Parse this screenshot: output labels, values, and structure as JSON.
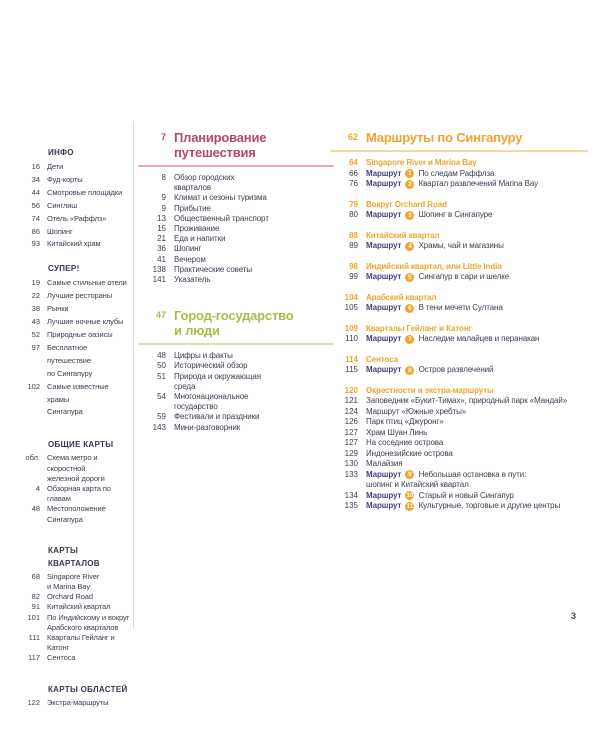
{
  "page_number": "3",
  "colors": {
    "planning_accent": "#b5486e",
    "city_accent": "#a8bd4a",
    "routes_accent": "#efa42d",
    "body_text": "#3e3c52",
    "route_word_color": "#4a3e7e",
    "badge_bg": "#f0a42c"
  },
  "sidebar": {
    "sections": [
      {
        "title": "ИНФО",
        "tight": false,
        "items": [
          {
            "page": "16",
            "label": "Дети"
          },
          {
            "page": "34",
            "label": "Фуд-корты"
          },
          {
            "page": "44",
            "label": "Смотровые площадки"
          },
          {
            "page": "56",
            "label": "Синглиш"
          },
          {
            "page": "74",
            "label": "Отель «Раффлз»"
          },
          {
            "page": "86",
            "label": "Шопинг"
          },
          {
            "page": "93",
            "label": "Китайский храм"
          }
        ]
      },
      {
        "title": "СУПЕР!",
        "tight": false,
        "items": [
          {
            "page": "19",
            "label": "Самые стильные отели"
          },
          {
            "page": "22",
            "label": "Лучшие рестораны"
          },
          {
            "page": "38",
            "label": "Рынки"
          },
          {
            "page": "43",
            "label": "Лучшие ночные клубы"
          },
          {
            "page": "52",
            "label": "Природные оазисы"
          },
          {
            "page": "97",
            "label": "Бесплатное путешествие\nпо Сингапуру"
          },
          {
            "page": "102",
            "label": "Самые известные храмы\nСингапура"
          }
        ]
      },
      {
        "title": "ОБЩИЕ КАРТЫ",
        "tight": true,
        "items": [
          {
            "page": "обл.",
            "label": "Схема метро и скоростной\nжелезной дороги"
          },
          {
            "page": "4",
            "label": "Обзорная карта по главам"
          },
          {
            "page": "48",
            "label": "Местоположение\nСингапура"
          }
        ]
      },
      {
        "title": "КАРТЫ КВАРТАЛОВ",
        "tight": true,
        "items": [
          {
            "page": "68",
            "label": "Singapore River\nи Marina Bay"
          },
          {
            "page": "82",
            "label": "Orchard Road"
          },
          {
            "page": "91",
            "label": "Китайский квартал"
          },
          {
            "page": "101",
            "label": "По Индийскому и вокруг\nАрабского кварталов"
          },
          {
            "page": "111",
            "label": "Кварталы Гейланг и Катонг"
          },
          {
            "page": "117",
            "label": "Сентоса"
          }
        ]
      },
      {
        "title": "КАРТЫ ОБЛАСТЕЙ",
        "tight": true,
        "items": [
          {
            "page": "122",
            "label": "Экстра-маршруты"
          }
        ]
      }
    ]
  },
  "planning": {
    "page": "7",
    "title": "Планирование\nпутешествия",
    "accent": "#b5486e",
    "items": [
      {
        "page": "8",
        "label": "Обзор городских\nкварталов"
      },
      {
        "page": "9",
        "label": "Климат и сезоны туризма"
      },
      {
        "page": "9",
        "label": "Прибытие"
      },
      {
        "page": "13",
        "label": "Общественный транспорт"
      },
      {
        "page": "15",
        "label": "Проживание"
      },
      {
        "page": "21",
        "label": "Еда и напитки"
      },
      {
        "page": "36",
        "label": "Шопинг"
      },
      {
        "page": "41",
        "label": "Вечером"
      },
      {
        "page": "138",
        "label": "Практические советы"
      },
      {
        "page": "141",
        "label": "Указатель"
      }
    ]
  },
  "city": {
    "page": "47",
    "title": "Город-государство\nи люди",
    "accent": "#a8bd4a",
    "items": [
      {
        "page": "48",
        "label": "Цифры и факты"
      },
      {
        "page": "50",
        "label": "Исторический обзор"
      },
      {
        "page": "51",
        "label": "Природа и окружающая\nсреда"
      },
      {
        "page": "54",
        "label": "Многонациональное\nгосударство"
      },
      {
        "page": "59",
        "label": "Фестивали и праздники"
      },
      {
        "page": "143",
        "label": "Мини-разговорник"
      }
    ]
  },
  "routes": {
    "page": "62",
    "title": "Маршруты по Сингапуру",
    "accent": "#efa42d",
    "route_word": "Маршрут",
    "groups": [
      {
        "head": {
          "page": "64",
          "label": "Singapore River и Marina Bay"
        },
        "entries": [
          {
            "page": "66",
            "badge": "1",
            "text": "По следам Раффлза"
          },
          {
            "page": "76",
            "badge": "2",
            "text": "Квартал развлечений Marina Bay"
          }
        ]
      },
      {
        "head": {
          "page": "79",
          "label": "Вокруг Orchard Road"
        },
        "entries": [
          {
            "page": "80",
            "badge": "3",
            "text": "Шопинг в Сингапуре"
          }
        ]
      },
      {
        "head": {
          "page": "88",
          "label": "Китайский квартал"
        },
        "entries": [
          {
            "page": "89",
            "badge": "4",
            "text": "Храмы, чай и магазины"
          }
        ]
      },
      {
        "head": {
          "page": "98",
          "label": "Индийский квартал, или Little India"
        },
        "entries": [
          {
            "page": "99",
            "badge": "5",
            "text": "Сингапур в сари и шелке"
          }
        ]
      },
      {
        "head": {
          "page": "104",
          "label": "Арабский квартал"
        },
        "entries": [
          {
            "page": "105",
            "badge": "6",
            "text": "В тени мечети Султана"
          }
        ]
      },
      {
        "head": {
          "page": "109",
          "label": "Кварталы Гейланг и Катонг"
        },
        "entries": [
          {
            "page": "110",
            "badge": "7",
            "text": "Наследие малайцев и перанакан"
          }
        ]
      },
      {
        "head": {
          "page": "114",
          "label": "Сентоса"
        },
        "entries": [
          {
            "page": "115",
            "badge": "8",
            "text": "Остров развлечений"
          }
        ]
      },
      {
        "head": {
          "page": "120",
          "label": "Окрестности и экстра-маршруты"
        },
        "entries": [
          {
            "page": "121",
            "text": "Заповедник «Букит-Тимах», природный парк «Мандай»"
          },
          {
            "page": "124",
            "text": "Маршрут «Южные хребты»"
          },
          {
            "page": "126",
            "text": "Парк птиц «Джуронг»"
          },
          {
            "page": "127",
            "text": "Храм Шуан Линь"
          },
          {
            "page": "127",
            "text": "На соседние острова"
          },
          {
            "page": "129",
            "text": "Индонезийские острова"
          },
          {
            "page": "130",
            "text": "Малайзия"
          },
          {
            "page": "133",
            "badge": "9",
            "text": "Небольшая остановка в пути:\nшопинг и Китайский квартал"
          },
          {
            "page": "134",
            "badge": "10",
            "text": "Старый и новый Сингапур"
          },
          {
            "page": "135",
            "badge": "11",
            "text": "Культурные, торговые и другие центры"
          }
        ]
      }
    ]
  }
}
